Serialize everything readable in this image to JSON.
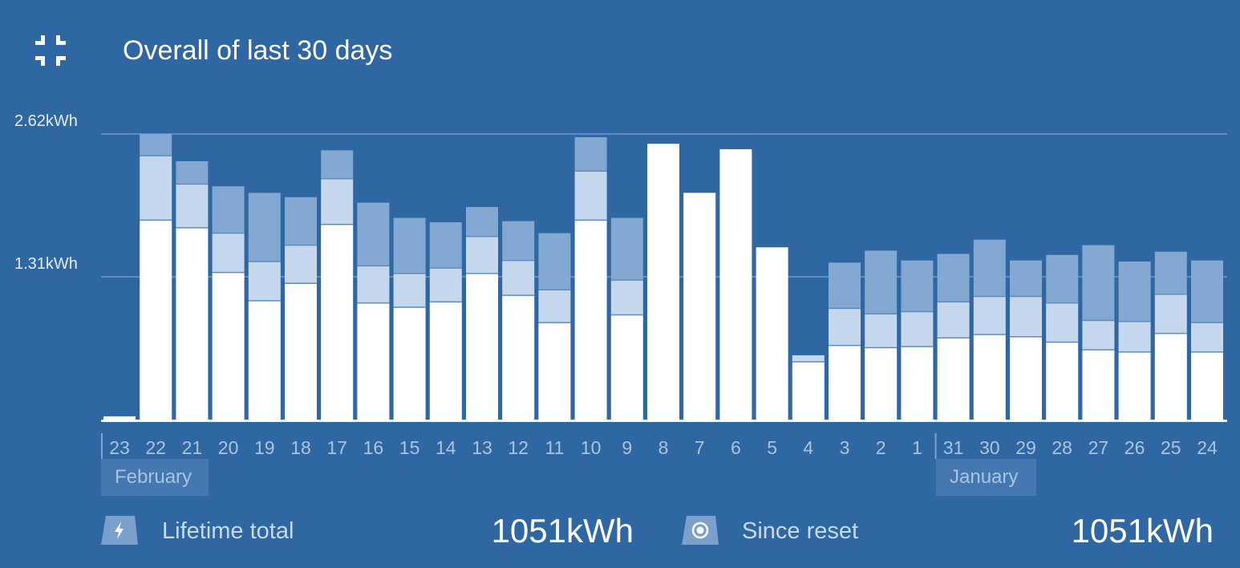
{
  "header": {
    "title": "Overall of last 30 days",
    "collapse_icon": "collapse-icon"
  },
  "colors": {
    "background": "#2f67a3",
    "segment_bottom": "#ffffff",
    "segment_middle": "#c5d7ec",
    "segment_top": "#83a8d2",
    "gridline": "#6f9bcc"
  },
  "chart_data": {
    "type": "bar",
    "stacked": true,
    "title": "Overall of last 30 days",
    "categories": [
      "23",
      "22",
      "21",
      "20",
      "19",
      "18",
      "17",
      "16",
      "15",
      "14",
      "13",
      "12",
      "11",
      "10",
      "9",
      "8",
      "7",
      "6",
      "5",
      "4",
      "3",
      "2",
      "1",
      "31",
      "30",
      "29",
      "28",
      "27",
      "26",
      "25",
      "24"
    ],
    "series": [
      {
        "values": [
          0.03,
          1.83,
          1.76,
          1.35,
          1.09,
          1.25,
          1.79,
          1.07,
          1.03,
          1.08,
          1.34,
          1.14,
          0.89,
          1.83,
          0.96,
          2.53,
          2.08,
          2.48,
          1.58,
          0.53,
          0.68,
          0.66,
          0.67,
          0.75,
          0.78,
          0.76,
          0.71,
          0.64,
          0.62,
          0.79,
          0.62
        ]
      },
      {
        "values": [
          0.0,
          0.59,
          0.4,
          0.36,
          0.36,
          0.35,
          0.42,
          0.34,
          0.31,
          0.31,
          0.34,
          0.32,
          0.3,
          0.45,
          0.32,
          0.0,
          0.0,
          0.0,
          0.0,
          0.06,
          0.34,
          0.31,
          0.32,
          0.33,
          0.35,
          0.37,
          0.36,
          0.27,
          0.28,
          0.36,
          0.27
        ]
      },
      {
        "values": [
          0.0,
          0.2,
          0.21,
          0.43,
          0.63,
          0.44,
          0.26,
          0.58,
          0.51,
          0.42,
          0.27,
          0.36,
          0.52,
          0.31,
          0.57,
          0.0,
          0.0,
          0.0,
          0.0,
          0.0,
          0.42,
          0.58,
          0.47,
          0.44,
          0.52,
          0.33,
          0.44,
          0.69,
          0.55,
          0.39,
          0.57
        ]
      }
    ],
    "ylim": [
      0,
      2.62
    ],
    "y_ticks": [
      "1.31kWh",
      "2.62kWh"
    ],
    "y_tick_values": [
      1.31,
      2.62
    ],
    "month_labels": [
      "February",
      "January"
    ],
    "grid": true
  },
  "footer": {
    "lifetime_icon": "lightning-icon",
    "lifetime_label": "Lifetime total",
    "lifetime_value": "1051kWh",
    "reset_icon": "record-icon",
    "reset_label": "Since reset",
    "reset_value": "1051kWh"
  }
}
